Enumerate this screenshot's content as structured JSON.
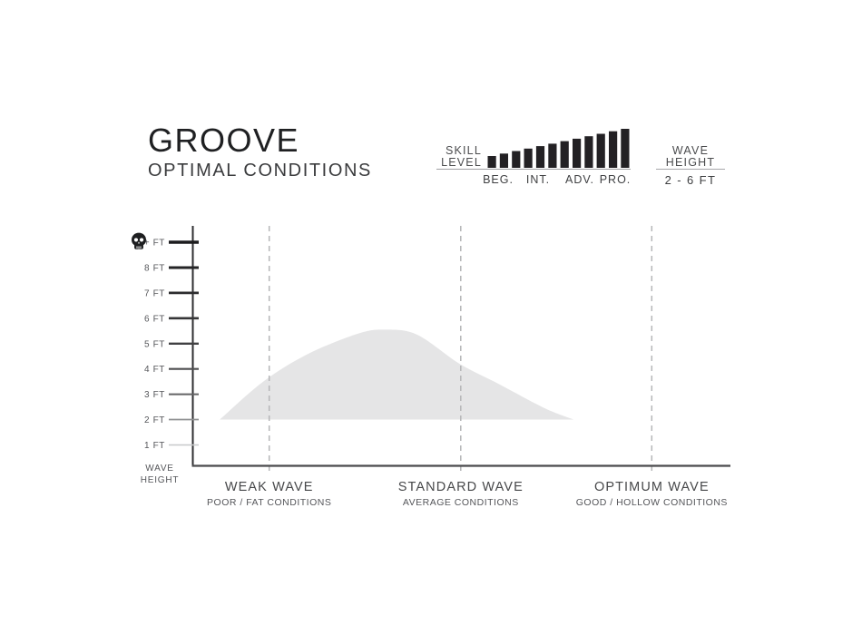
{
  "header": {
    "title": "GROOVE",
    "subtitle": "OPTIMAL CONDITIONS",
    "skill": {
      "label_line1": "SKILL",
      "label_line2": "LEVEL",
      "tiers": [
        {
          "label": "BEG."
        },
        {
          "label": "INT."
        },
        {
          "label": "ADV."
        },
        {
          "label": "PRO."
        }
      ],
      "bars_total": 12,
      "bars_filled": 12,
      "bar_color": "#232124"
    },
    "wave_height": {
      "label_line1": "WAVE",
      "label_line2": "HEIGHT",
      "range": "2 - 6 FT"
    }
  },
  "chart_data": {
    "type": "area",
    "title": "GROOVE",
    "subtitle": "OPTIMAL CONDITIONS",
    "y_axis": {
      "label_line1": "WAVE",
      "label_line2": "HEIGHT",
      "tick_labels": [
        "+ FT",
        "8 FT",
        "7 FT",
        "6 FT",
        "5 FT",
        "4 FT",
        "3 FT",
        "2 FT",
        "1 FT"
      ],
      "ticks_ft": [
        9,
        8,
        7,
        6,
        5,
        4,
        3,
        2,
        1
      ],
      "top_tick_icon": "skull-icon",
      "range_ft": [
        0,
        9
      ]
    },
    "x_axis": {
      "categories": [
        {
          "label": "WEAK WAVE",
          "sublabel": "POOR / FAT CONDITIONS",
          "position": 0.142
        },
        {
          "label": "STANDARD WAVE",
          "sublabel": "AVERAGE CONDITIONS",
          "position": 0.498
        },
        {
          "label": "OPTIMUM WAVE",
          "sublabel": "GOOD / HOLLOW CONDITIONS",
          "position": 0.853
        }
      ],
      "gridline_style": "dashed"
    },
    "series": [
      {
        "name": "optimal-conditions-range",
        "baseline_ft": 2,
        "fill": "#e5e5e6",
        "points": [
          {
            "x": 0.05,
            "ft": 2.0
          },
          {
            "x": 0.131,
            "ft": 3.5
          },
          {
            "x": 0.215,
            "ft": 4.6
          },
          {
            "x": 0.308,
            "ft": 5.4
          },
          {
            "x": 0.358,
            "ft": 5.55
          },
          {
            "x": 0.417,
            "ft": 5.35
          },
          {
            "x": 0.496,
            "ft": 4.2
          },
          {
            "x": 0.569,
            "ft": 3.4
          },
          {
            "x": 0.654,
            "ft": 2.45
          },
          {
            "x": 0.708,
            "ft": 2.0
          }
        ]
      }
    ],
    "wave_height_range": "2 - 6 FT",
    "legend": "none"
  },
  "colors": {
    "background": "#ffffff",
    "axis_vertical": "#2e2e30",
    "axis_horizontal": "#4b4b4d",
    "dashed_gridline": "#b5b6b8",
    "area_fill": "#e5e5e6",
    "tick_dark": "#1c1c1e",
    "tick_light": "#c7c8ca",
    "text_dark": "#1f2022",
    "text_gray": "#55565a"
  }
}
